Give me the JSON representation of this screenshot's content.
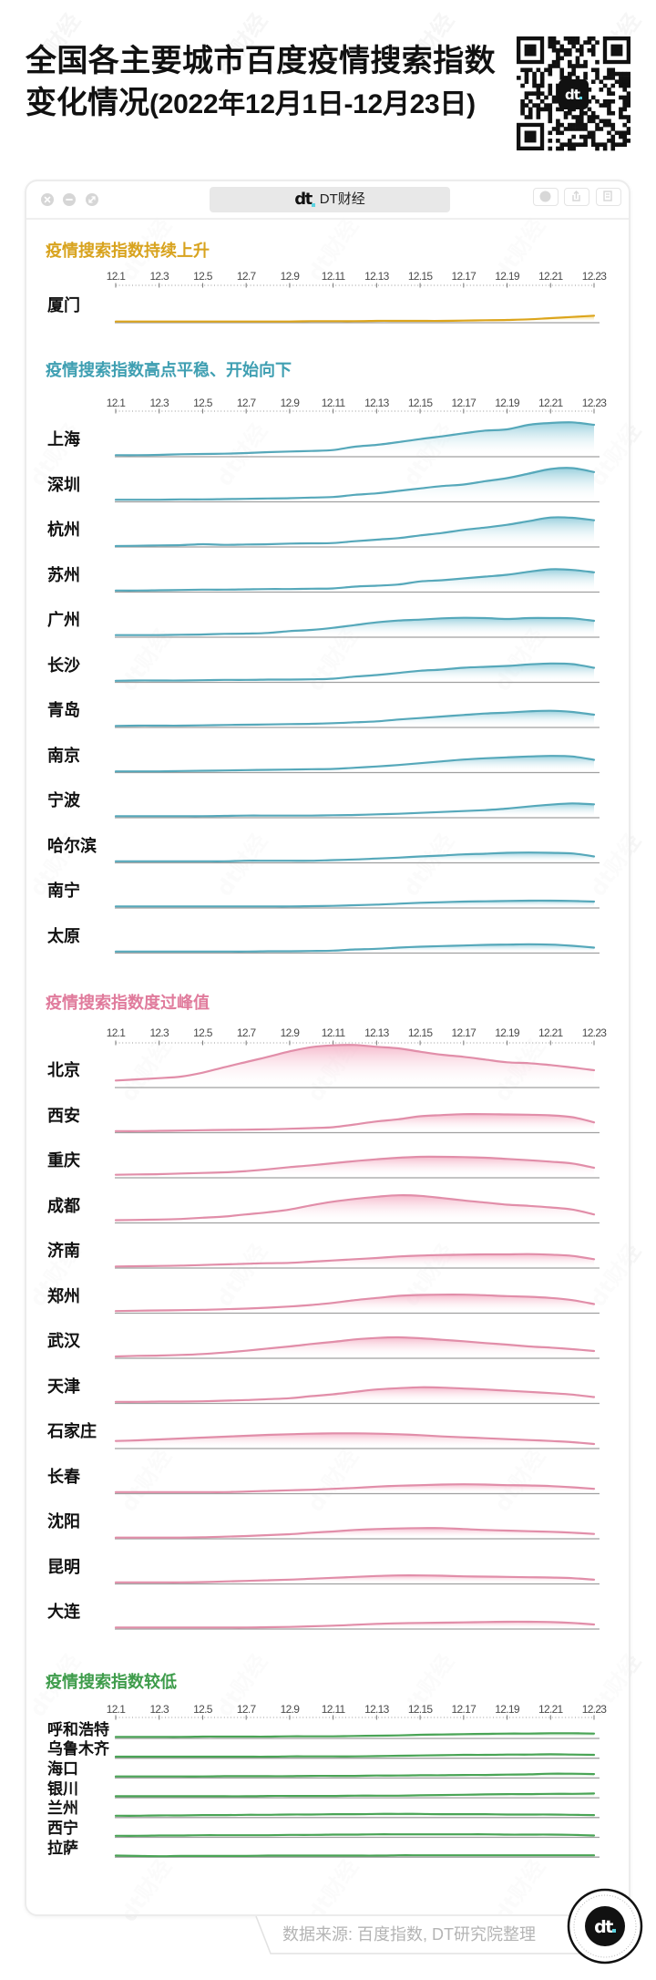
{
  "header": {
    "title_line1": "全国各主要城市百度疫情搜索指数",
    "title_line2_main": "变化情况",
    "title_line2_dates": "(2022年12月1日-12月23日)"
  },
  "qr": {
    "logo": "dt"
  },
  "window": {
    "tab_logo": "dt",
    "tab_title": "DT财经",
    "controls": [
      "close-icon",
      "minimize-icon",
      "fullscreen-icon"
    ],
    "actions": [
      "record-icon",
      "share-icon",
      "copy-icon"
    ]
  },
  "sections": [
    {
      "title": "疫情搜索指数持续上升",
      "title_color": "#d8a31e",
      "line_color": "#dca51c",
      "fill_color": "#f2c94f"
    },
    {
      "title": "疫情搜索指数高点平稳、开始向下",
      "title_color": "#3f9fb2",
      "line_color": "#56a8ba",
      "fill_color": "#7fc4d5"
    },
    {
      "title": "疫情搜索指数度过峰值",
      "title_color": "#e07b9c",
      "line_color": "#e18ea9",
      "fill_color": "#f3a8bf"
    },
    {
      "title": "疫情搜索指数较低",
      "title_color": "#3e9c4b",
      "line_color": "#4aa456",
      "fill_color": "#8fd19a"
    }
  ],
  "axis": {
    "tick_labels": [
      "12.1",
      "12.3",
      "12.5",
      "12.7",
      "12.9",
      "12.11",
      "12.13",
      "12.15",
      "12.17",
      "12.19",
      "12.21",
      "12.23"
    ]
  },
  "footer": {
    "source": "数据来源: 百度指数, DT研究院整理",
    "logo": "dt"
  },
  "watermark": "dt财经",
  "chart_data": [
    {
      "type": "area",
      "title": "疫情搜索指数持续上升",
      "xlabel": "",
      "ylabel": "",
      "grid": false,
      "legend": "none",
      "categories": [
        "12.1",
        "12.2",
        "12.3",
        "12.4",
        "12.5",
        "12.6",
        "12.7",
        "12.8",
        "12.9",
        "12.10",
        "12.11",
        "12.12",
        "12.13",
        "12.14",
        "12.15",
        "12.16",
        "12.17",
        "12.18",
        "12.19",
        "12.20",
        "12.21",
        "12.22",
        "12.23"
      ],
      "x_tick_labels": [
        "12.1",
        "12.3",
        "12.5",
        "12.7",
        "12.9",
        "12.11",
        "12.13",
        "12.15",
        "12.17",
        "12.19",
        "12.21",
        "12.23"
      ],
      "series": [
        {
          "name": "厦门",
          "values": [
            1,
            1,
            1,
            1,
            1,
            1,
            1,
            1,
            1,
            2,
            2,
            2,
            3,
            3,
            3,
            3,
            4,
            5,
            6,
            8,
            12,
            16,
            20
          ]
        }
      ]
    },
    {
      "type": "area",
      "title": "疫情搜索指数高点平稳、开始向下",
      "xlabel": "",
      "ylabel": "",
      "grid": false,
      "legend": "none",
      "categories": [
        "12.1",
        "12.2",
        "12.3",
        "12.4",
        "12.5",
        "12.6",
        "12.7",
        "12.8",
        "12.9",
        "12.10",
        "12.11",
        "12.12",
        "12.13",
        "12.14",
        "12.15",
        "12.16",
        "12.17",
        "12.18",
        "12.19",
        "12.20",
        "12.21",
        "12.22",
        "12.23"
      ],
      "x_tick_labels": [
        "12.1",
        "12.3",
        "12.5",
        "12.7",
        "12.9",
        "12.11",
        "12.13",
        "12.15",
        "12.17",
        "12.19",
        "12.21",
        "12.23"
      ],
      "series": [
        {
          "name": "上海",
          "values": [
            2,
            2,
            3,
            5,
            6,
            7,
            9,
            12,
            14,
            16,
            19,
            30,
            36,
            45,
            55,
            64,
            74,
            83,
            87,
            102,
            108,
            110,
            102
          ]
        },
        {
          "name": "深圳",
          "values": [
            4,
            4,
            4,
            5,
            5,
            6,
            7,
            8,
            9,
            11,
            13,
            20,
            25,
            33,
            41,
            49,
            54,
            65,
            75,
            90,
            105,
            108,
            95
          ]
        },
        {
          "name": "杭州",
          "values": [
            0,
            1,
            2,
            3,
            6,
            4,
            5,
            6,
            8,
            9,
            10,
            16,
            21,
            26,
            35,
            43,
            53,
            61,
            70,
            82,
            94,
            93,
            85
          ]
        },
        {
          "name": "苏州",
          "values": [
            2,
            2,
            3,
            4,
            5,
            5,
            6,
            7,
            7,
            8,
            9,
            15,
            18,
            22,
            32,
            36,
            42,
            48,
            54,
            64,
            72,
            70,
            62
          ]
        },
        {
          "name": "广州",
          "values": [
            4,
            4,
            4,
            5,
            6,
            8,
            9,
            11,
            17,
            21,
            28,
            37,
            46,
            52,
            55,
            59,
            61,
            60,
            57,
            60,
            60,
            59,
            51
          ]
        },
        {
          "name": "长沙",
          "values": [
            2,
            3,
            3,
            3,
            4,
            5,
            5,
            6,
            6,
            7,
            9,
            16,
            21,
            28,
            35,
            39,
            45,
            48,
            51,
            56,
            59,
            57,
            45
          ]
        },
        {
          "name": "青岛",
          "values": [
            2,
            3,
            3,
            3,
            4,
            5,
            6,
            7,
            8,
            9,
            11,
            14,
            17,
            23,
            28,
            33,
            38,
            43,
            46,
            50,
            52,
            48,
            39
          ]
        },
        {
          "name": "南京",
          "values": [
            1,
            1,
            1,
            2,
            3,
            4,
            5,
            6,
            7,
            8,
            9,
            13,
            17,
            22,
            28,
            34,
            40,
            44,
            47,
            50,
            52,
            50,
            39
          ]
        },
        {
          "name": "宁波",
          "values": [
            2,
            2,
            2,
            2,
            2,
            3,
            4,
            4,
            4,
            4,
            5,
            6,
            8,
            10,
            13,
            16,
            19,
            22,
            27,
            34,
            40,
            44,
            41
          ]
        },
        {
          "name": "哈尔滨",
          "values": [
            2,
            2,
            2,
            2,
            2,
            2,
            4,
            4,
            4,
            4,
            6,
            8,
            11,
            14,
            18,
            21,
            25,
            27,
            30,
            31,
            30,
            28,
            18
          ]
        },
        {
          "name": "南宁",
          "values": [
            2,
            2,
            2,
            2,
            2,
            2,
            2,
            2,
            2,
            3,
            4,
            6,
            8,
            11,
            14,
            16,
            18,
            19,
            20,
            21,
            21,
            20,
            18
          ]
        },
        {
          "name": "太原",
          "values": [
            2,
            2,
            2,
            2,
            2,
            2,
            2,
            3,
            3,
            4,
            5,
            9,
            11,
            15,
            18,
            20,
            22,
            24,
            25,
            26,
            25,
            21,
            15
          ]
        }
      ]
    },
    {
      "type": "area",
      "title": "疫情搜索指数度过峰值",
      "xlabel": "",
      "ylabel": "",
      "grid": false,
      "legend": "none",
      "categories": [
        "12.1",
        "12.2",
        "12.3",
        "12.4",
        "12.5",
        "12.6",
        "12.7",
        "12.8",
        "12.9",
        "12.10",
        "12.11",
        "12.12",
        "12.13",
        "12.14",
        "12.15",
        "12.16",
        "12.17",
        "12.18",
        "12.19",
        "12.20",
        "12.21",
        "12.22",
        "12.23"
      ],
      "x_tick_labels": [
        "12.1",
        "12.3",
        "12.5",
        "12.7",
        "12.9",
        "12.11",
        "12.13",
        "12.15",
        "12.17",
        "12.19",
        "12.21",
        "12.23"
      ],
      "series": [
        {
          "name": "北京",
          "values": [
            20,
            24,
            28,
            33,
            46,
            64,
            81,
            98,
            116,
            130,
            136,
            137,
            131,
            126,
            115,
            105,
            98,
            89,
            80,
            77,
            71,
            63,
            54
          ]
        },
        {
          "name": "西安",
          "values": [
            2,
            2,
            3,
            4,
            5,
            6,
            7,
            8,
            10,
            12,
            15,
            24,
            34,
            41,
            51,
            55,
            58,
            58,
            57,
            56,
            54,
            48,
            31
          ]
        },
        {
          "name": "重庆",
          "values": [
            7,
            8,
            9,
            11,
            13,
            15,
            19,
            25,
            32,
            38,
            45,
            52,
            58,
            63,
            66,
            66,
            65,
            63,
            59,
            55,
            50,
            44,
            30
          ]
        },
        {
          "name": "成都",
          "values": [
            6,
            7,
            8,
            10,
            14,
            18,
            25,
            32,
            41,
            55,
            67,
            76,
            83,
            88,
            86,
            79,
            71,
            64,
            57,
            53,
            48,
            41,
            25
          ]
        },
        {
          "name": "济南",
          "values": [
            2,
            3,
            4,
            5,
            7,
            9,
            11,
            13,
            14,
            18,
            22,
            26,
            30,
            35,
            38,
            40,
            41,
            42,
            42,
            43,
            41,
            37,
            26
          ]
        },
        {
          "name": "郑州",
          "values": [
            4,
            5,
            6,
            7,
            8,
            10,
            12,
            15,
            19,
            24,
            31,
            40,
            47,
            54,
            57,
            58,
            58,
            56,
            53,
            51,
            47,
            40,
            27
          ]
        },
        {
          "name": "武汉",
          "values": [
            3,
            5,
            6,
            8,
            11,
            16,
            22,
            29,
            36,
            44,
            51,
            59,
            64,
            66,
            63,
            58,
            53,
            47,
            42,
            36,
            32,
            27,
            21
          ]
        },
        {
          "name": "天津",
          "values": [
            2,
            2,
            3,
            3,
            4,
            6,
            8,
            11,
            14,
            21,
            27,
            35,
            43,
            47,
            50,
            49,
            46,
            43,
            39,
            35,
            31,
            26,
            18
          ]
        },
        {
          "name": "石家庄",
          "values": [
            22,
            24,
            27,
            30,
            33,
            36,
            39,
            42,
            44,
            46,
            47,
            47,
            46,
            44,
            41,
            37,
            34,
            31,
            28,
            25,
            22,
            18,
            12
          ]
        },
        {
          "name": "长春",
          "values": [
            2,
            2,
            2,
            2,
            2,
            2,
            4,
            6,
            8,
            10,
            13,
            16,
            20,
            23,
            25,
            27,
            28,
            27,
            25,
            24,
            22,
            18,
            13
          ]
        },
        {
          "name": "沈阳",
          "values": [
            1,
            1,
            1,
            1,
            2,
            4,
            6,
            9,
            12,
            17,
            21,
            26,
            29,
            31,
            32,
            32,
            29,
            26,
            24,
            22,
            20,
            17,
            13
          ]
        },
        {
          "name": "昆明",
          "values": [
            2,
            2,
            2,
            2,
            3,
            5,
            7,
            9,
            11,
            14,
            17,
            20,
            23,
            25,
            25,
            24,
            22,
            21,
            20,
            19,
            18,
            16,
            11
          ]
        },
        {
          "name": "大连",
          "values": [
            2,
            2,
            2,
            2,
            2,
            2,
            2,
            3,
            4,
            6,
            8,
            11,
            14,
            16,
            17,
            18,
            19,
            20,
            21,
            21,
            20,
            17,
            12
          ]
        }
      ]
    },
    {
      "type": "area",
      "title": "疫情搜索指数较低",
      "xlabel": "",
      "ylabel": "",
      "grid": false,
      "legend": "none",
      "categories": [
        "12.1",
        "12.2",
        "12.3",
        "12.4",
        "12.5",
        "12.6",
        "12.7",
        "12.8",
        "12.9",
        "12.10",
        "12.11",
        "12.12",
        "12.13",
        "12.14",
        "12.15",
        "12.16",
        "12.17",
        "12.18",
        "12.19",
        "12.20",
        "12.21",
        "12.22",
        "12.23"
      ],
      "x_tick_labels": [
        "12.1",
        "12.3",
        "12.5",
        "12.7",
        "12.9",
        "12.11",
        "12.13",
        "12.15",
        "12.17",
        "12.19",
        "12.21",
        "12.23"
      ],
      "series": [
        {
          "name": "呼和浩特",
          "values": [
            2,
            2,
            2,
            2,
            3,
            3,
            3,
            3,
            4,
            4,
            4,
            5,
            6,
            7,
            9,
            10,
            11,
            12,
            13,
            13,
            14,
            14,
            13
          ]
        },
        {
          "name": "乌鲁木齐",
          "values": [
            2,
            2,
            2,
            2,
            2,
            2,
            2,
            2,
            3,
            3,
            3,
            3,
            4,
            5,
            6,
            7,
            8,
            8,
            9,
            9,
            10,
            9,
            8
          ]
        },
        {
          "name": "海口",
          "values": [
            2,
            2,
            2,
            2,
            2,
            3,
            3,
            3,
            3,
            4,
            4,
            4,
            5,
            5,
            6,
            6,
            7,
            7,
            8,
            9,
            11,
            11,
            10
          ]
        },
        {
          "name": "银川",
          "values": [
            2,
            2,
            2,
            2,
            2,
            2,
            2,
            3,
            3,
            3,
            3,
            4,
            4,
            4,
            5,
            6,
            7,
            8,
            9,
            9,
            10,
            10,
            11
          ]
        },
        {
          "name": "兰州",
          "values": [
            3,
            3,
            4,
            4,
            5,
            5,
            6,
            6,
            7,
            7,
            8,
            8,
            9,
            9,
            9,
            8,
            8,
            8,
            7,
            7,
            7,
            6,
            5
          ]
        },
        {
          "name": "西宁",
          "values": [
            2,
            2,
            3,
            3,
            4,
            4,
            4,
            4,
            5,
            5,
            6,
            6,
            7,
            7,
            7,
            7,
            7,
            7,
            6,
            6,
            6,
            5,
            3
          ]
        },
        {
          "name": "拉萨",
          "values": [
            2,
            1,
            0,
            1,
            1,
            1,
            1,
            2,
            2,
            2,
            2,
            2,
            2,
            3,
            3,
            3,
            3,
            3,
            3,
            3,
            3,
            3,
            3
          ]
        }
      ]
    }
  ]
}
